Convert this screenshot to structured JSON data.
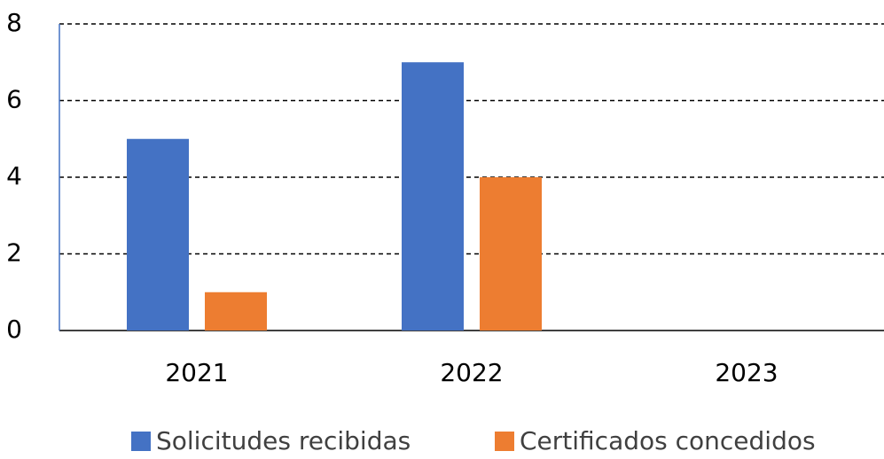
{
  "chart_data": {
    "type": "bar",
    "categories": [
      "2021",
      "2022",
      "2023"
    ],
    "series": [
      {
        "name": "Solicitudes recibidas",
        "color": "#4472c4",
        "values": [
          5,
          7,
          0
        ]
      },
      {
        "name": "Certificados concedidos",
        "color": "#ed7d31",
        "values": [
          1,
          4,
          0
        ]
      }
    ],
    "ylim": [
      0,
      8
    ],
    "yticks": [
      0,
      2,
      4,
      6,
      8
    ],
    "grid": true,
    "legend": "bottom"
  }
}
